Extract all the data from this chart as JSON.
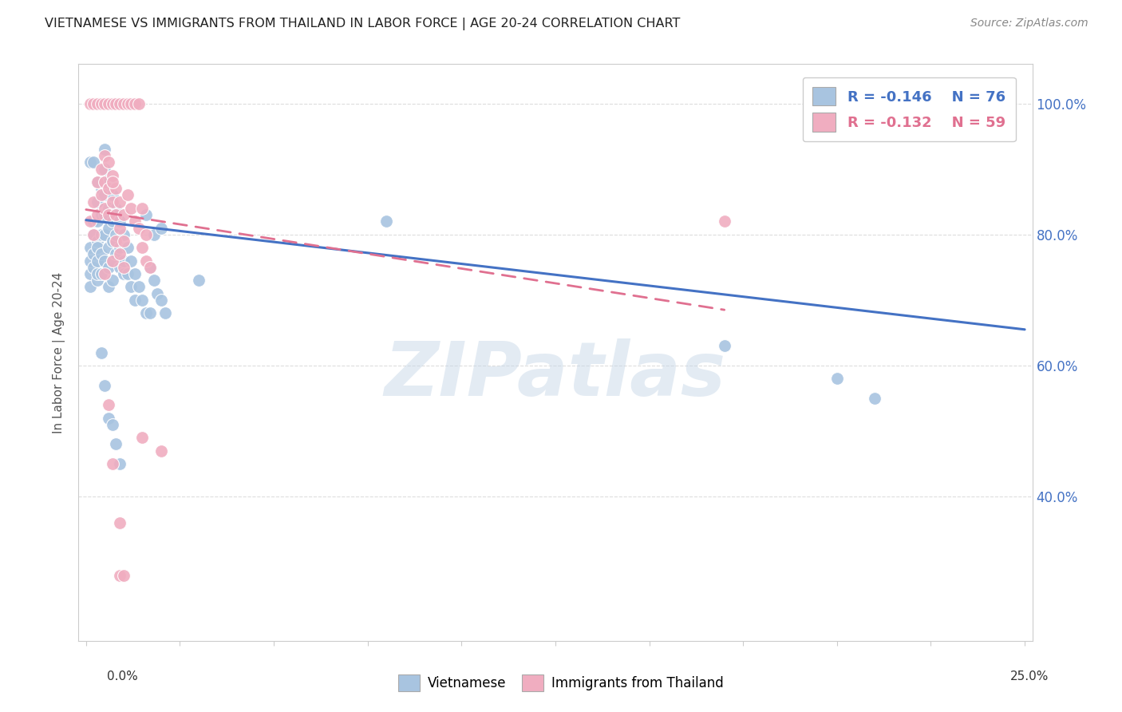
{
  "title": "VIETNAMESE VS IMMIGRANTS FROM THAILAND IN LABOR FORCE | AGE 20-24 CORRELATION CHART",
  "source": "Source: ZipAtlas.com",
  "ylabel": "In Labor Force | Age 20-24",
  "bg_color": "#ffffff",
  "watermark_text": "ZIPatlas",
  "blue_color": "#a8c4e0",
  "pink_color": "#f0adc0",
  "blue_line_color": "#4472c4",
  "pink_line_color": "#e07090",
  "grid_color": "#dddddd",
  "axis_color": "#cccccc",
  "right_tick_color": "#4472c4",
  "blue_scatter": [
    [
      0.001,
      0.76
    ],
    [
      0.001,
      0.74
    ],
    [
      0.001,
      0.72
    ],
    [
      0.001,
      0.78
    ],
    [
      0.002,
      0.8
    ],
    [
      0.002,
      0.77
    ],
    [
      0.002,
      0.75
    ],
    [
      0.002,
      0.82
    ],
    [
      0.003,
      0.85
    ],
    [
      0.003,
      0.82
    ],
    [
      0.003,
      0.79
    ],
    [
      0.003,
      0.76
    ],
    [
      0.003,
      0.73
    ],
    [
      0.003,
      0.78
    ],
    [
      0.003,
      0.74
    ],
    [
      0.004,
      0.87
    ],
    [
      0.004,
      0.83
    ],
    [
      0.004,
      0.8
    ],
    [
      0.004,
      0.77
    ],
    [
      0.004,
      0.74
    ],
    [
      0.004,
      0.88
    ],
    [
      0.005,
      0.9
    ],
    [
      0.005,
      0.86
    ],
    [
      0.005,
      0.83
    ],
    [
      0.005,
      0.8
    ],
    [
      0.005,
      0.76
    ],
    [
      0.005,
      0.93
    ],
    [
      0.006,
      0.88
    ],
    [
      0.006,
      0.84
    ],
    [
      0.006,
      0.81
    ],
    [
      0.006,
      0.78
    ],
    [
      0.006,
      0.75
    ],
    [
      0.006,
      0.72
    ],
    [
      0.007,
      0.86
    ],
    [
      0.007,
      0.82
    ],
    [
      0.007,
      0.79
    ],
    [
      0.007,
      0.76
    ],
    [
      0.007,
      0.73
    ],
    [
      0.008,
      0.84
    ],
    [
      0.008,
      0.8
    ],
    [
      0.008,
      0.77
    ],
    [
      0.009,
      0.82
    ],
    [
      0.009,
      0.78
    ],
    [
      0.009,
      0.75
    ],
    [
      0.01,
      0.8
    ],
    [
      0.01,
      0.76
    ],
    [
      0.01,
      0.74
    ],
    [
      0.011,
      0.78
    ],
    [
      0.011,
      0.74
    ],
    [
      0.012,
      0.76
    ],
    [
      0.012,
      0.72
    ],
    [
      0.013,
      0.74
    ],
    [
      0.013,
      0.7
    ],
    [
      0.014,
      0.72
    ],
    [
      0.015,
      0.7
    ],
    [
      0.016,
      0.68
    ],
    [
      0.017,
      0.75
    ],
    [
      0.017,
      0.68
    ],
    [
      0.018,
      0.73
    ],
    [
      0.019,
      0.71
    ],
    [
      0.02,
      0.7
    ],
    [
      0.021,
      0.68
    ],
    [
      0.004,
      0.62
    ],
    [
      0.005,
      0.57
    ],
    [
      0.006,
      0.52
    ],
    [
      0.007,
      0.51
    ],
    [
      0.008,
      0.48
    ],
    [
      0.009,
      0.45
    ],
    [
      0.001,
      0.91
    ],
    [
      0.002,
      0.91
    ],
    [
      0.003,
      0.88
    ],
    [
      0.016,
      0.83
    ],
    [
      0.018,
      0.8
    ],
    [
      0.02,
      0.81
    ],
    [
      0.03,
      0.73
    ],
    [
      0.08,
      0.82
    ],
    [
      0.17,
      0.63
    ],
    [
      0.2,
      0.58
    ],
    [
      0.21,
      0.55
    ]
  ],
  "pink_scatter": [
    [
      0.001,
      0.82
    ],
    [
      0.002,
      0.85
    ],
    [
      0.002,
      0.8
    ],
    [
      0.003,
      0.88
    ],
    [
      0.003,
      0.83
    ],
    [
      0.004,
      0.9
    ],
    [
      0.004,
      0.86
    ],
    [
      0.005,
      0.92
    ],
    [
      0.005,
      0.88
    ],
    [
      0.005,
      0.84
    ],
    [
      0.006,
      0.91
    ],
    [
      0.006,
      0.87
    ],
    [
      0.006,
      0.83
    ],
    [
      0.007,
      0.89
    ],
    [
      0.007,
      0.85
    ],
    [
      0.007,
      0.76
    ],
    [
      0.008,
      0.87
    ],
    [
      0.008,
      0.83
    ],
    [
      0.008,
      0.79
    ],
    [
      0.009,
      0.85
    ],
    [
      0.009,
      0.81
    ],
    [
      0.009,
      0.77
    ],
    [
      0.01,
      0.83
    ],
    [
      0.01,
      0.79
    ],
    [
      0.01,
      0.75
    ],
    [
      0.001,
      1.0
    ],
    [
      0.002,
      1.0
    ],
    [
      0.003,
      1.0
    ],
    [
      0.004,
      1.0
    ],
    [
      0.005,
      1.0
    ],
    [
      0.006,
      1.0
    ],
    [
      0.007,
      1.0
    ],
    [
      0.008,
      1.0
    ],
    [
      0.009,
      1.0
    ],
    [
      0.01,
      1.0
    ],
    [
      0.011,
      1.0
    ],
    [
      0.012,
      1.0
    ],
    [
      0.013,
      1.0
    ],
    [
      0.014,
      1.0
    ],
    [
      0.011,
      0.86
    ],
    [
      0.012,
      0.84
    ],
    [
      0.013,
      0.82
    ],
    [
      0.014,
      0.81
    ],
    [
      0.015,
      0.84
    ],
    [
      0.015,
      0.78
    ],
    [
      0.016,
      0.8
    ],
    [
      0.016,
      0.76
    ],
    [
      0.017,
      0.75
    ],
    [
      0.006,
      0.54
    ],
    [
      0.007,
      0.45
    ],
    [
      0.009,
      0.36
    ],
    [
      0.009,
      0.28
    ],
    [
      0.01,
      0.28
    ],
    [
      0.015,
      0.49
    ],
    [
      0.02,
      0.47
    ],
    [
      0.17,
      0.82
    ],
    [
      0.007,
      0.88
    ],
    [
      0.005,
      0.74
    ]
  ],
  "blue_line_x": [
    0.0,
    0.25
  ],
  "blue_line_y": [
    0.822,
    0.655
  ],
  "pink_line_x": [
    0.0,
    0.17
  ],
  "pink_line_y": [
    0.838,
    0.685
  ],
  "xlim": [
    -0.002,
    0.252
  ],
  "ylim": [
    0.18,
    1.06
  ],
  "ytick_positions": [
    1.0,
    0.8,
    0.6,
    0.4
  ],
  "ytick_labels": [
    "100.0%",
    "80.0%",
    "60.0%",
    "40.0%"
  ],
  "xtick_positions": [
    0.0,
    0.025,
    0.05,
    0.075,
    0.1,
    0.125,
    0.15,
    0.175,
    0.2,
    0.225,
    0.25
  ],
  "bottom_x_labels": [
    "0.0%",
    "25.0%"
  ]
}
